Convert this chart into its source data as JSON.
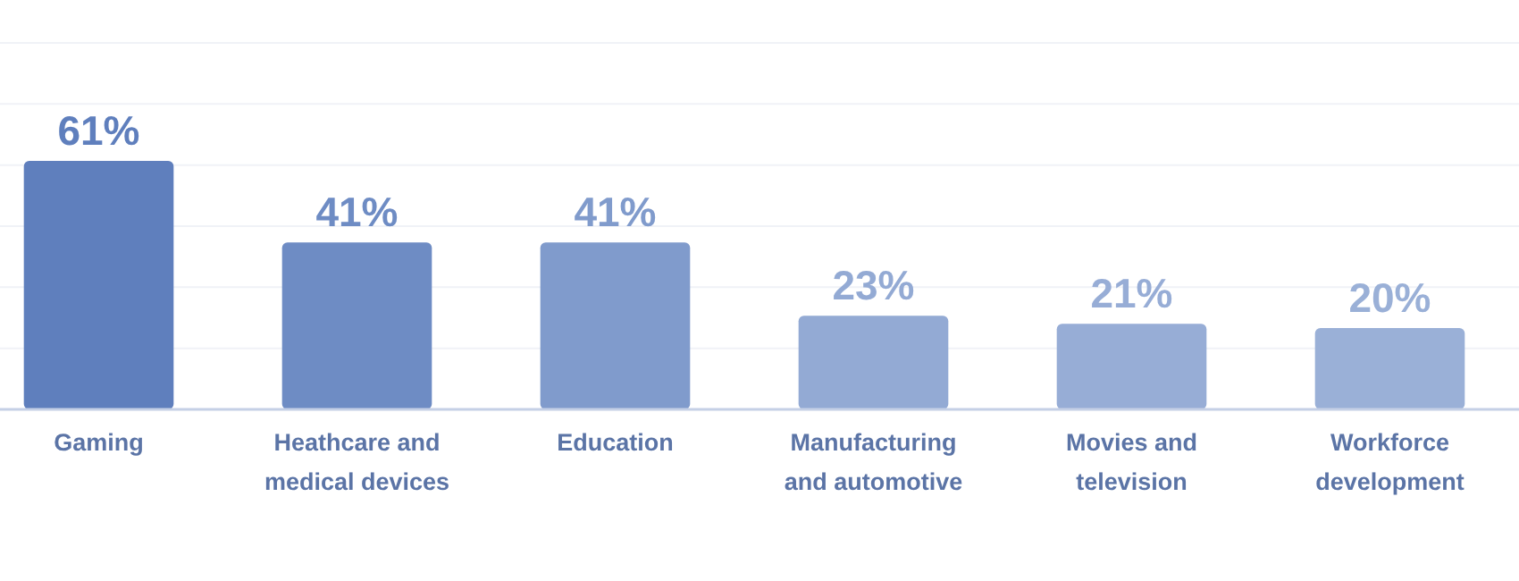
{
  "chart_data": {
    "type": "bar",
    "categories": [
      "Gaming",
      "Heathcare and medical devices",
      "Education",
      "Manufacturing and automotive",
      "Movies and television",
      "Workforce development"
    ],
    "values": [
      61,
      41,
      41,
      23,
      21,
      20
    ],
    "colors": [
      "#5f7fbd",
      "#6e8cc4",
      "#809bcc",
      "#93aad4",
      "#97add6",
      "#9ab0d7"
    ],
    "value_labels": [
      "61%",
      "41%",
      "41%",
      "23%",
      "21%",
      "20%"
    ],
    "ylim": [
      0,
      90
    ],
    "yticks": [
      {
        "value": 0,
        "label": null
      },
      {
        "value": 15,
        "label": null
      },
      {
        "value": 30,
        "label": null
      },
      {
        "value": 45,
        "label": null
      },
      {
        "value": 60,
        "label": null
      },
      {
        "value": 75,
        "label": null
      },
      {
        "value": 90,
        "label": null
      }
    ],
    "grid": "y",
    "tick_labels": "x"
  }
}
